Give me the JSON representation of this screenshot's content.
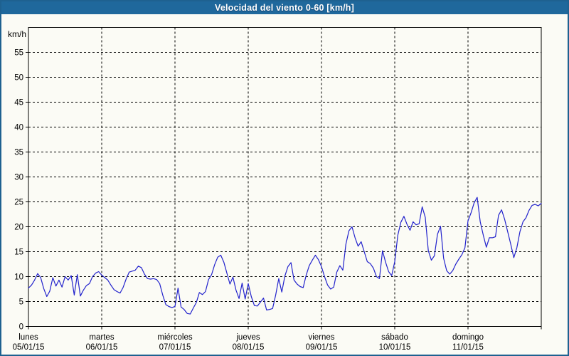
{
  "window": {
    "title": "Velocidad del viento 0-60 [km/h]"
  },
  "colors": {
    "titlebar": "#1f689c",
    "window_border": "#1e6190",
    "background": "#fbfbf5",
    "line": "#2222cc",
    "grid": "#000000",
    "label_text": "#000000"
  },
  "chart_data": {
    "type": "line",
    "title": "Velocidad del viento 0-60 [km/h]",
    "ylabel": "km/h",
    "unit_label": "km/h",
    "ylim": [
      0,
      60
    ],
    "ytick_interval": 5,
    "grid": "dashed",
    "legend": "none",
    "days": [
      {
        "name": "lunes",
        "date": "05/01/15"
      },
      {
        "name": "martes",
        "date": "06/01/15"
      },
      {
        "name": "miércoles",
        "date": "07/01/15"
      },
      {
        "name": "jueves",
        "date": "08/01/15"
      },
      {
        "name": "viernes",
        "date": "09/01/15"
      },
      {
        "name": "sábado",
        "date": "10/01/15"
      },
      {
        "name": "domingo",
        "date": "11/01/15"
      }
    ],
    "hours_per_day": 24,
    "series_name": "Velocidad del viento",
    "values_kmh_hourly": [
      7.7,
      8.3,
      9.3,
      10.6,
      9.8,
      7.6,
      6.0,
      7.1,
      9.8,
      8.1,
      9.3,
      7.9,
      10.0,
      9.3,
      10.2,
      6.3,
      10.4,
      6.1,
      7.3,
      8.2,
      8.6,
      10.0,
      10.7,
      11.0,
      10.3,
      9.8,
      9.3,
      8.3,
      7.4,
      7.0,
      6.7,
      7.8,
      9.5,
      10.9,
      11.1,
      11.3,
      12.1,
      11.8,
      10.5,
      9.6,
      9.5,
      9.6,
      9.4,
      8.6,
      6.3,
      4.4,
      4.0,
      3.8,
      4.0,
      7.7,
      3.9,
      3.4,
      2.6,
      2.5,
      3.7,
      4.8,
      6.8,
      6.4,
      7.0,
      9.4,
      10.4,
      12.4,
      13.9,
      14.3,
      12.9,
      10.7,
      8.5,
      9.9,
      7.3,
      5.6,
      8.7,
      5.5,
      8.6,
      6.0,
      4.2,
      4.1,
      4.9,
      5.7,
      3.3,
      3.4,
      3.6,
      6.3,
      9.6,
      6.9,
      10.1,
      12.0,
      12.8,
      9.3,
      8.5,
      8.0,
      7.8,
      10.3,
      12.2,
      13.3,
      14.3,
      13.4,
      12.0,
      10.0,
      8.3,
      7.5,
      7.9,
      10.9,
      12.2,
      11.3,
      16.5,
      19.2,
      20.0,
      17.8,
      16.1,
      17.0,
      15.0,
      13.0,
      12.6,
      11.7,
      10.0,
      9.6,
      15.2,
      12.9,
      11.0,
      10.2,
      13.0,
      18.3,
      20.9,
      22.1,
      20.5,
      19.3,
      21.0,
      20.4,
      20.6,
      24.0,
      21.9,
      15.2,
      13.3,
      14.2,
      18.5,
      20.1,
      13.7,
      11.2,
      10.5,
      11.2,
      12.5,
      13.5,
      14.4,
      15.8,
      21.2,
      22.8,
      24.8,
      25.9,
      21.0,
      18.3,
      15.9,
      17.8,
      17.8,
      18.0,
      22.3,
      23.4,
      21.5,
      19.0,
      16.5,
      13.8,
      15.8,
      19.0,
      21.0,
      21.8,
      23.3,
      24.3,
      24.5,
      24.2,
      24.7
    ]
  }
}
